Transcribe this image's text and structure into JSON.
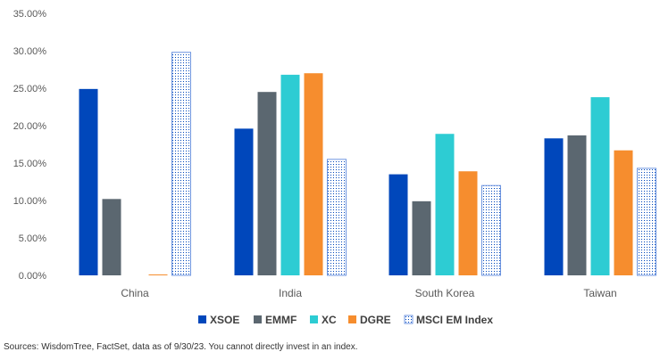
{
  "chart_data": {
    "type": "bar",
    "categories": [
      "China",
      "India",
      "South Korea",
      "Taiwan"
    ],
    "series": [
      {
        "name": "XSOE",
        "color": "#0047BB",
        "values": [
          24.9,
          19.6,
          13.5,
          18.3
        ]
      },
      {
        "name": "EMMF",
        "color": "#5B6770",
        "values": [
          10.2,
          24.5,
          9.9,
          18.7
        ]
      },
      {
        "name": "XC",
        "color": "#2DCCD3",
        "values": [
          0,
          26.8,
          18.9,
          23.8
        ]
      },
      {
        "name": "DGRE",
        "color": "#F68D2E",
        "values": [
          0.1,
          27.0,
          13.9,
          16.7
        ]
      },
      {
        "name": "MSCI EM Index",
        "color": "#0047BB",
        "pattern": "dotted",
        "values": [
          29.8,
          15.5,
          12.0,
          14.3
        ]
      }
    ],
    "yticks": [
      "0.00%",
      "5.00%",
      "10.00%",
      "15.00%",
      "20.00%",
      "25.00%",
      "30.00%",
      "35.00%"
    ],
    "ylim": [
      0,
      35
    ],
    "grid": false,
    "legend": "bottom"
  },
  "source": "Sources: WisdomTree, FactSet, data as of 9/30/23. You cannot directly invest in an index."
}
